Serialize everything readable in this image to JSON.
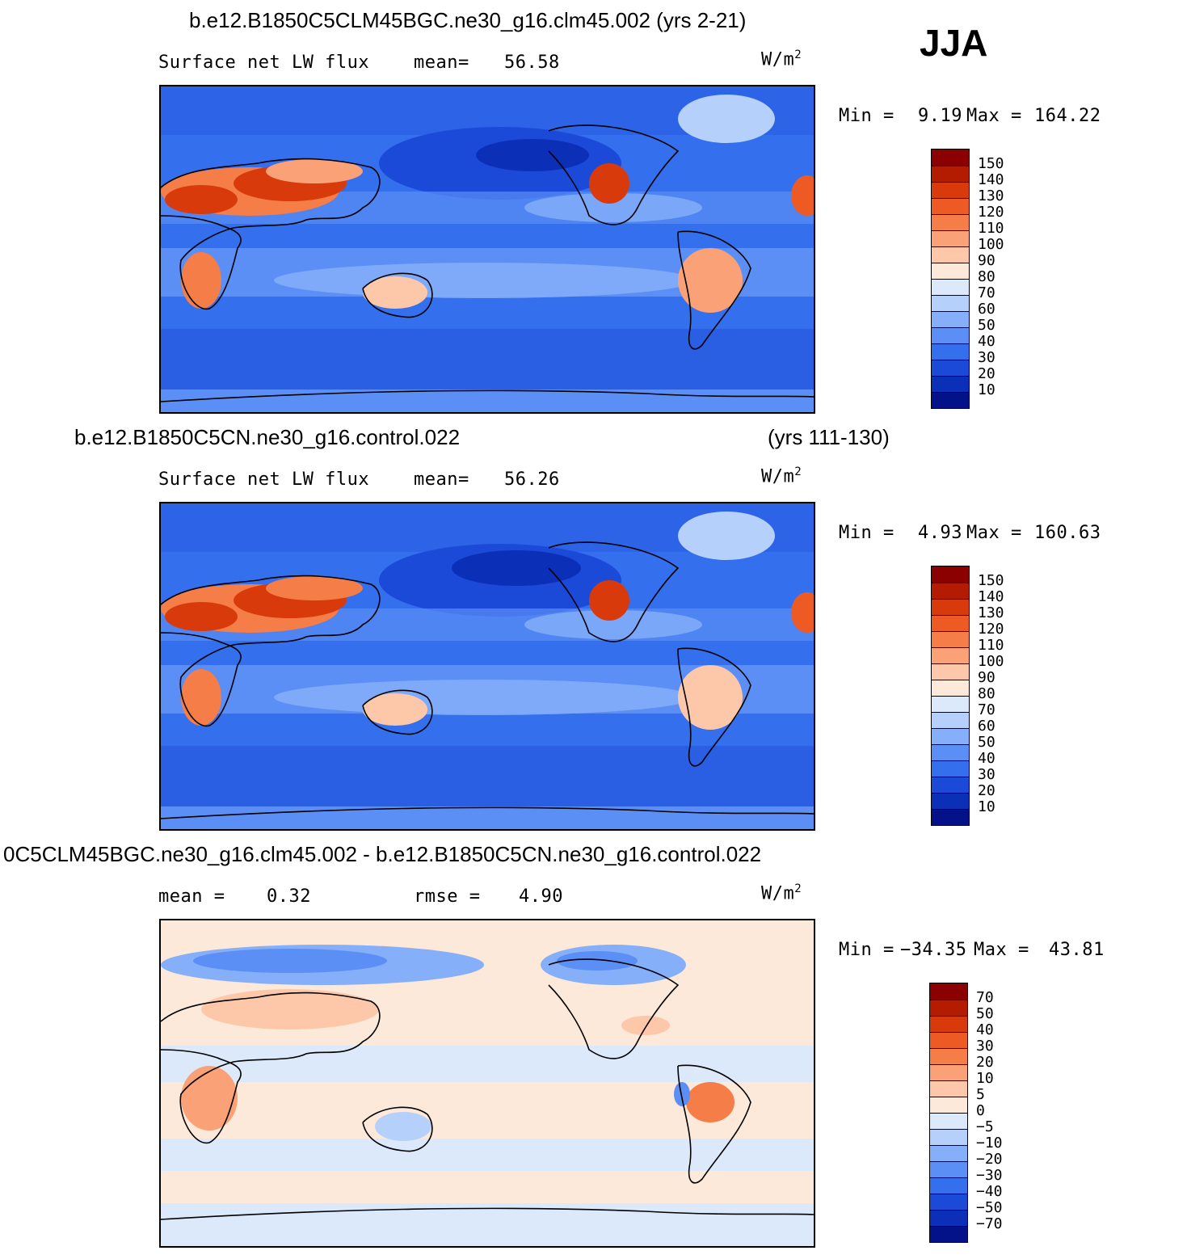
{
  "season": "JJA",
  "units": "W/m",
  "units_sup": "2",
  "chart_data": [
    {
      "type": "heatmap",
      "title": "b.e12.B1850C5CLM45BGC.ne30_g16.clm45.002 (yrs 2-21)",
      "variable": "Surface net LW flux",
      "mean_label": "mean=",
      "mean": "56.58",
      "min_label": "Min =",
      "min": "9.19",
      "max_label": "Max =",
      "max": "164.22",
      "colorbar": [
        "150",
        "140",
        "130",
        "120",
        "110",
        "100",
        "90",
        "80",
        "70",
        "60",
        "50",
        "40",
        "30",
        "20",
        "10"
      ],
      "colors": [
        "#8b0000",
        "#b31c00",
        "#d93a0c",
        "#ee5a24",
        "#f57d47",
        "#fba177",
        "#fdc8aa",
        "#fde9d9",
        "#dbe9fb",
        "#b4d0fb",
        "#86affa",
        "#5b8ff5",
        "#3470ee",
        "#1b4ad9",
        "#0c2fb8",
        "#04128a"
      ]
    },
    {
      "type": "heatmap",
      "title_left": "b.e12.B1850C5CN.ne30_g16.control.022",
      "title_right": "(yrs 111-130)",
      "variable": "Surface net LW flux",
      "mean_label": "mean=",
      "mean": "56.26",
      "min_label": "Min =",
      "min": "4.93",
      "max_label": "Max =",
      "max": "160.63",
      "colorbar": [
        "150",
        "140",
        "130",
        "120",
        "110",
        "100",
        "90",
        "80",
        "70",
        "60",
        "50",
        "40",
        "30",
        "20",
        "10"
      ],
      "colors": [
        "#8b0000",
        "#b31c00",
        "#d93a0c",
        "#ee5a24",
        "#f57d47",
        "#fba177",
        "#fdc8aa",
        "#fde9d9",
        "#dbe9fb",
        "#b4d0fb",
        "#86affa",
        "#5b8ff5",
        "#3470ee",
        "#1b4ad9",
        "#0c2fb8",
        "#04128a"
      ]
    },
    {
      "type": "heatmap",
      "title": "0C5CLM45BGC.ne30_g16.clm45.002 - b.e12.B1850C5CN.ne30_g16.control.022",
      "mean_label": "mean =",
      "mean": "0.32",
      "rmse_label": "rmse =",
      "rmse": "4.90",
      "min_label": "Min =",
      "min": "−34.35",
      "max_label": "Max =",
      "max": "43.81",
      "colorbar": [
        "70",
        "50",
        "40",
        "30",
        "20",
        "10",
        "5",
        "0",
        "−5",
        "−10",
        "−20",
        "−30",
        "−40",
        "−50",
        "−70"
      ],
      "colors": [
        "#8b0000",
        "#b31c00",
        "#d93a0c",
        "#ee5a24",
        "#f57d47",
        "#fba177",
        "#fdc8aa",
        "#fde9d9",
        "#dbe9fb",
        "#b4d0fb",
        "#86affa",
        "#5b8ff5",
        "#3470ee",
        "#1b4ad9",
        "#0c2fb8",
        "#04128a"
      ]
    }
  ]
}
